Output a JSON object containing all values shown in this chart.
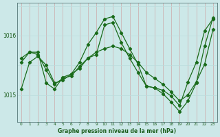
{
  "xlabel": "Graphe pression niveau de la mer (hPa)",
  "x_ticks": [
    0,
    1,
    2,
    3,
    4,
    5,
    6,
    7,
    8,
    9,
    10,
    11,
    12,
    13,
    14,
    15,
    16,
    17,
    18,
    19,
    20,
    21,
    22,
    23
  ],
  "ylim": [
    1014.55,
    1016.55
  ],
  "yticks": [
    1015,
    1016
  ],
  "bg_color": "#cce8e8",
  "grid_color_v": "#aad4d4",
  "grid_color_h": "#bbdddd",
  "line_color": "#1a6b1a",
  "line1_x": [
    0,
    1,
    2,
    3,
    4,
    5,
    6,
    7,
    8,
    9,
    10,
    11,
    12,
    13,
    14,
    15,
    16,
    17,
    18,
    19,
    20,
    21,
    22,
    23
  ],
  "line1_y": [
    1015.1,
    1015.55,
    1015.65,
    1015.5,
    1015.2,
    1015.25,
    1015.35,
    1015.55,
    1015.85,
    1016.05,
    1016.28,
    1016.32,
    1016.05,
    1015.78,
    1015.52,
    1015.15,
    1015.12,
    1015.02,
    1014.88,
    1014.72,
    1014.9,
    1015.2,
    1015.82,
    1016.3
  ],
  "line2_x": [
    0,
    1,
    2,
    3,
    4,
    5,
    6,
    7,
    8,
    9,
    10,
    11,
    12,
    13,
    14,
    15,
    16,
    17,
    18,
    19,
    20,
    21,
    22,
    23
  ],
  "line2_y": [
    1015.62,
    1015.72,
    1015.68,
    1015.42,
    1015.18,
    1015.28,
    1015.32,
    1015.48,
    1015.62,
    1015.72,
    1015.78,
    1015.82,
    1015.78,
    1015.68,
    1015.55,
    1015.38,
    1015.28,
    1015.18,
    1015.05,
    1014.9,
    1015.0,
    1015.22,
    1015.52,
    1016.1
  ],
  "line3_x": [
    0,
    1,
    2,
    3,
    4,
    5,
    6,
    7,
    8,
    9,
    10,
    11,
    12,
    13,
    14,
    15,
    16,
    17,
    18,
    19,
    20,
    21,
    22,
    23
  ],
  "line3_y": [
    1015.55,
    1015.72,
    1015.72,
    1015.2,
    1015.1,
    1015.3,
    1015.35,
    1015.45,
    1015.62,
    1015.68,
    1016.18,
    1016.22,
    1015.88,
    1015.62,
    1015.38,
    1015.15,
    1015.12,
    1015.08,
    1014.98,
    1014.82,
    1015.22,
    1015.55,
    1016.08,
    1016.28
  ]
}
